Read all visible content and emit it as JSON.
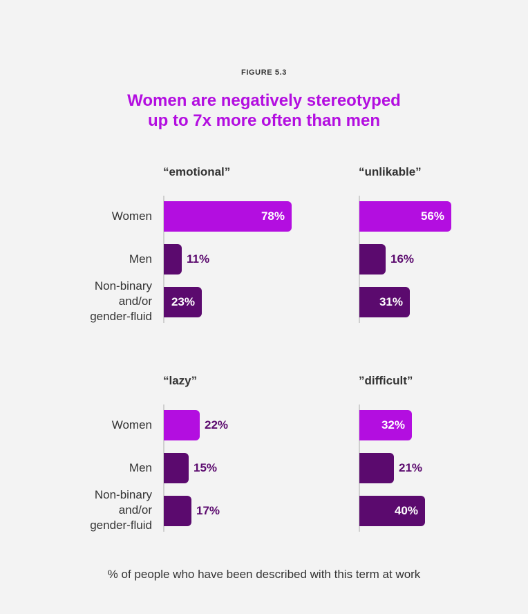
{
  "header": {
    "figure_label": "FIGURE 5.3",
    "title_line1": "Women are negatively stereotyped",
    "title_line2": "up to 7x more often than men"
  },
  "footnote": "% of people who have been described with this term at work",
  "colors": {
    "women": "#b30ee0",
    "men": "#5b0a6e",
    "nonbinary": "#5b0a6e",
    "label_on_dark": "#ffffff",
    "label_outside": "#5b0a6e"
  },
  "chart_data": [
    {
      "type": "bar",
      "orientation": "horizontal",
      "title": "“emotional”",
      "categories": [
        "Women",
        "Men",
        "Non-binary and/or gender-fluid"
      ],
      "values": [
        78,
        11,
        23
      ],
      "value_labels": [
        "78%",
        "11%",
        "23%"
      ]
    },
    {
      "type": "bar",
      "orientation": "horizontal",
      "title": "“unlikable”",
      "categories": [
        "Women",
        "Men",
        "Non-binary and/or gender-fluid"
      ],
      "values": [
        56,
        16,
        31
      ],
      "value_labels": [
        "56%",
        "16%",
        "31%"
      ]
    },
    {
      "type": "bar",
      "orientation": "horizontal",
      "title": "“lazy”",
      "categories": [
        "Women",
        "Men",
        "Non-binary and/or gender-fluid"
      ],
      "values": [
        22,
        15,
        17
      ],
      "value_labels": [
        "22%",
        "15%",
        "17%"
      ]
    },
    {
      "type": "bar",
      "orientation": "horizontal",
      "title": "”difficult”",
      "categories": [
        "Women",
        "Men",
        "Non-binary and/or gender-fluid"
      ],
      "values": [
        32,
        21,
        40
      ],
      "value_labels": [
        "32%",
        "21%",
        "40%"
      ]
    }
  ],
  "row_labels": {
    "women": "Women",
    "men": "Men",
    "nonbinary_line1": "Non-binary",
    "nonbinary_line2": "and/or",
    "nonbinary_line3": "gender-fluid"
  }
}
